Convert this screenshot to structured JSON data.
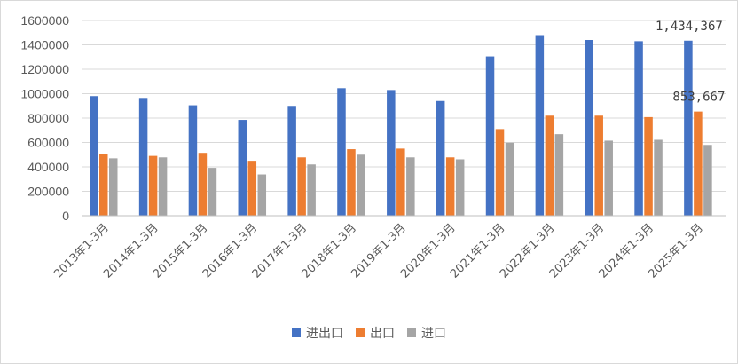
{
  "chart_data": {
    "type": "bar",
    "categories": [
      "2013年1-3月",
      "2014年1-3月",
      "2015年1-3月",
      "2016年1-3月",
      "2017年1-3月",
      "2018年1-3月",
      "2019年1-3月",
      "2020年1-3月",
      "2021年1-3月",
      "2022年1-3月",
      "2023年1-3月",
      "2024年1-3月",
      "2025年1-3月"
    ],
    "series": [
      {
        "name": "进出口",
        "color": "#4472C4",
        "values": [
          980000,
          965000,
          905000,
          785000,
          900000,
          1045000,
          1030000,
          940000,
          1305000,
          1480000,
          1440000,
          1430000,
          1434367
        ]
      },
      {
        "name": "出口",
        "color": "#ED7D31",
        "values": [
          505000,
          490000,
          515000,
          450000,
          478000,
          545000,
          550000,
          478000,
          710000,
          820000,
          820000,
          808000,
          853667
        ]
      },
      {
        "name": "进口",
        "color": "#A5A5A5",
        "values": [
          470000,
          478000,
          392000,
          338000,
          420000,
          500000,
          478000,
          462000,
          598000,
          668000,
          615000,
          622000,
          580000
        ]
      }
    ],
    "ylim": [
      0,
      1600000
    ],
    "yticks": [
      0,
      200000,
      400000,
      600000,
      800000,
      1000000,
      1200000,
      1400000,
      1600000
    ],
    "grid": true,
    "legend_position": "bottom",
    "data_labels": [
      "1,434,367",
      "853,667"
    ],
    "title": "",
    "xlabel": "",
    "ylabel": ""
  }
}
